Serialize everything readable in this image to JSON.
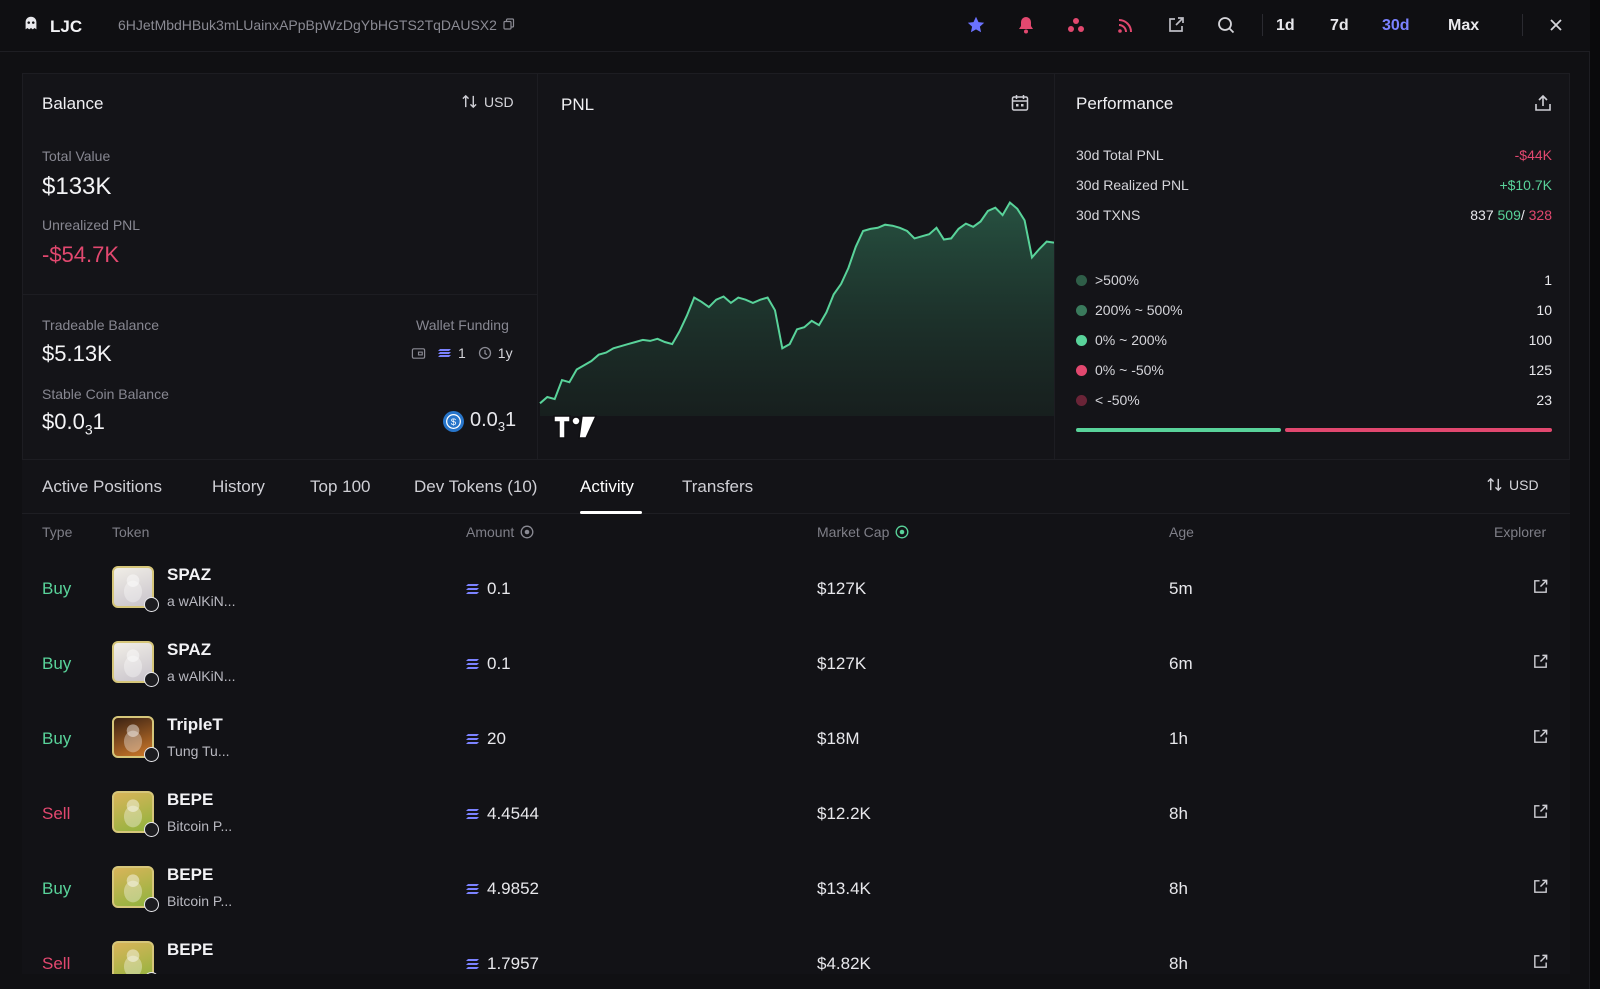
{
  "header": {
    "name": "LJC",
    "wallet": "6HJetMbdHBuk3mLUainxAPpBpWzDgYbHGTS2TqDAUSX2",
    "ranges": [
      "1d",
      "7d",
      "30d",
      "Max"
    ],
    "active_range": "30d"
  },
  "balance": {
    "title": "Balance",
    "currency_toggle": "USD",
    "total_value_label": "Total Value",
    "total_value": "$133K",
    "unrealized_label": "Unrealized PNL",
    "unrealized_value": "-$54.7K",
    "tradeable_label": "Tradeable Balance",
    "tradeable_value": "$5.13K",
    "funding_label": "Wallet Funding",
    "funding_count": "1",
    "funding_age": "1y",
    "stable_label": "Stable Coin Balance",
    "stable_value_main": "$0.0",
    "stable_value_sub": "3",
    "stable_value_end": "1",
    "stable_coin_main": "0.0",
    "stable_coin_sub": "3",
    "stable_coin_end": "1"
  },
  "pnl": {
    "title": "PNL",
    "watermark": "TV"
  },
  "chart_data": {
    "type": "area",
    "title": "PNL",
    "xlabel": "",
    "ylabel": "",
    "grid": false,
    "values": [
      12,
      18,
      16,
      34,
      32,
      44,
      48,
      52,
      58,
      60,
      64,
      66,
      68,
      70,
      72,
      71,
      73,
      70,
      68,
      80,
      95,
      112,
      108,
      103,
      110,
      113,
      107,
      112,
      110,
      107,
      110,
      112,
      100,
      64,
      68,
      82,
      84,
      90,
      86,
      98,
      115,
      125,
      140,
      160,
      175,
      177,
      178,
      181,
      180,
      178,
      175,
      168,
      170,
      172,
      178,
      167,
      168,
      177,
      182,
      179,
      184,
      194,
      197,
      190,
      202,
      196,
      185,
      150,
      158,
      165,
      164
    ]
  },
  "performance": {
    "title": "Performance",
    "total_pnl_label": "30d Total PNL",
    "total_pnl_value": "-$44K",
    "realized_label": "30d Realized PNL",
    "realized_value": "+$10.7K",
    "txns_label": "30d TXNS",
    "txns_total": "837",
    "txns_buy": "509",
    "txns_sep": "/",
    "txns_sell": "328",
    "buckets": [
      {
        "label": ">500%",
        "count": "1",
        "color": "#2f5e48"
      },
      {
        "label": "200% ~ 500%",
        "count": "10",
        "color": "#3a7a5c"
      },
      {
        "label": "0% ~ 200%",
        "count": "100",
        "color": "#59d39a"
      },
      {
        "label": "0% ~ -50%",
        "count": "125",
        "color": "#e2486f"
      },
      {
        "label": "< -50%",
        "count": "23",
        "color": "#6a2437"
      }
    ],
    "bar_green_share": 0.43
  },
  "tabs": {
    "items": [
      "Active Positions",
      "History",
      "Top 100",
      "Dev Tokens (10)",
      "Activity",
      "Transfers"
    ],
    "active": "Activity",
    "currency_toggle": "USD"
  },
  "table": {
    "headers": {
      "type": "Type",
      "token": "Token",
      "amount": "Amount",
      "mcap": "Market Cap",
      "age": "Age",
      "explorer": "Explorer"
    },
    "rows": [
      {
        "type": "Buy",
        "name": "SPAZ",
        "sub": "a wAlKiN...",
        "amount": "0.1",
        "mcap": "$127K",
        "age": "5m"
      },
      {
        "type": "Buy",
        "name": "SPAZ",
        "sub": "a wAlKiN...",
        "amount": "0.1",
        "mcap": "$127K",
        "age": "6m"
      },
      {
        "type": "Buy",
        "name": "TripleT",
        "sub": "Tung Tu...",
        "amount": "20",
        "mcap": "$18M",
        "age": "1h"
      },
      {
        "type": "Sell",
        "name": "BEPE",
        "sub": "Bitcoin P...",
        "amount": "4.4544",
        "mcap": "$12.2K",
        "age": "8h"
      },
      {
        "type": "Buy",
        "name": "BEPE",
        "sub": "Bitcoin P...",
        "amount": "4.9852",
        "mcap": "$13.4K",
        "age": "8h"
      },
      {
        "type": "Sell",
        "name": "BEPE",
        "sub": "",
        "amount": "1.7957",
        "mcap": "$4.82K",
        "age": "8h"
      }
    ]
  },
  "colors": {
    "accent": "#7b82ff",
    "buy": "#59d39a",
    "sell": "#e2486f"
  }
}
